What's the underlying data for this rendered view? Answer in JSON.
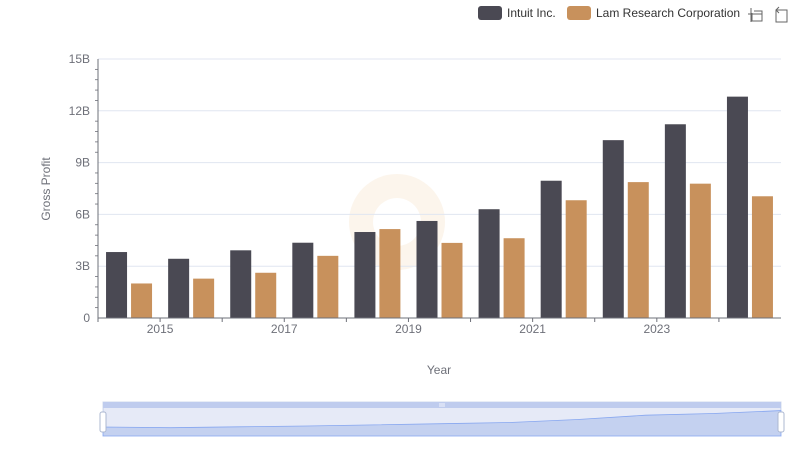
{
  "toolbar": {
    "zoom_icon": "zoom-select-icon",
    "reset_icon": "zoom-reset-icon"
  },
  "colors": {
    "Intuit Inc.": "#4a4953",
    "Lam Research Corporation": "#c8915c"
  },
  "chart_data": {
    "type": "bar",
    "xlabel": "Year",
    "ylabel": "Gross Profit",
    "ylim": [
      0,
      15000000000
    ],
    "yticks": [
      "0",
      "3B",
      "6B",
      "9B",
      "12B",
      "15B"
    ],
    "categories": [
      "2014",
      "2015",
      "2016",
      "2017",
      "2018",
      "2019",
      "2020",
      "2021",
      "2022",
      "2023",
      "2024"
    ],
    "xtick_labels": [
      "2015",
      "2017",
      "2019",
      "2021",
      "2023"
    ],
    "legend_position": "top-right",
    "grid": true,
    "series": [
      {
        "name": "Intuit Inc.",
        "values": [
          3820000000,
          3430000000,
          3920000000,
          4360000000,
          4980000000,
          5620000000,
          6300000000,
          7950000000,
          10300000000,
          11220000000,
          12820000000
        ]
      },
      {
        "name": "Lam Research Corporation",
        "values": [
          2000000000,
          2280000000,
          2620000000,
          3600000000,
          5150000000,
          4350000000,
          4620000000,
          6820000000,
          7870000000,
          7780000000,
          7050000000
        ]
      }
    ]
  }
}
